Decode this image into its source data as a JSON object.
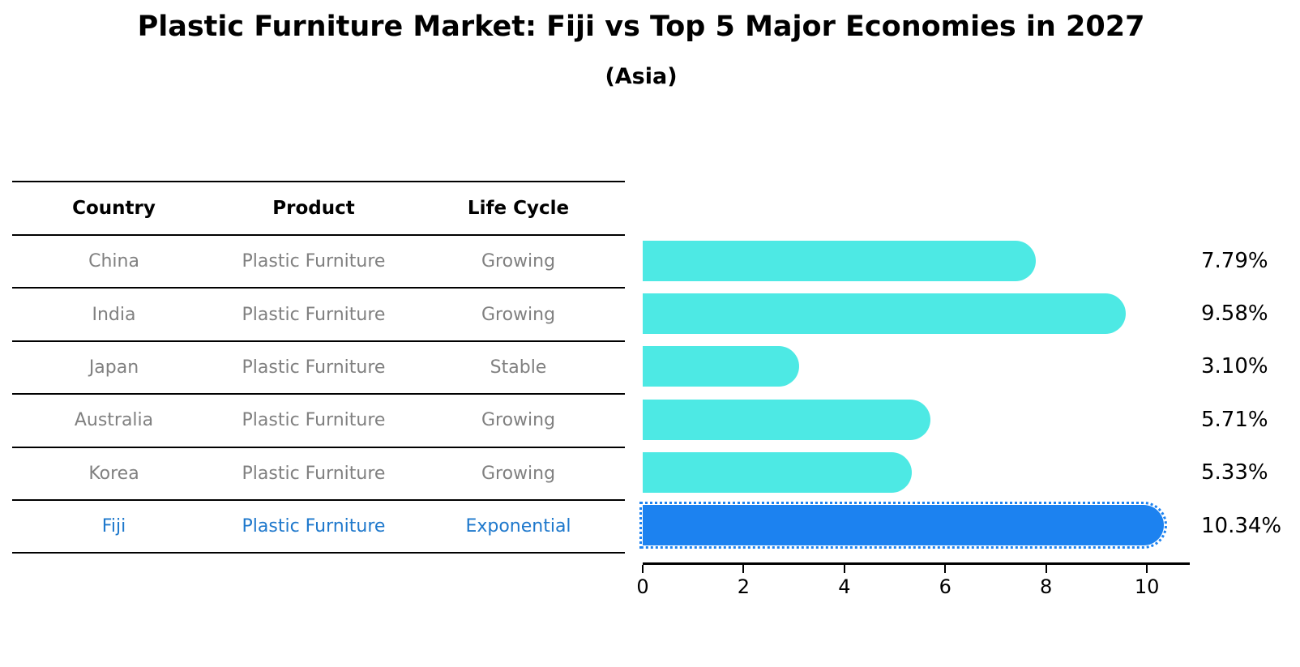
{
  "title": "Plastic Furniture Market: Fiji vs Top 5 Major Economies in 2027",
  "subtitle": "(Asia)",
  "table": {
    "headers": [
      "Country",
      "Product",
      "Life Cycle"
    ],
    "rows": [
      {
        "country": "China",
        "product": "Plastic Furniture",
        "life_cycle": "Growing",
        "highlight": false
      },
      {
        "country": "India",
        "product": "Plastic Furniture",
        "life_cycle": "Growing",
        "highlight": false
      },
      {
        "country": "Japan",
        "product": "Plastic Furniture",
        "life_cycle": "Stable",
        "highlight": false
      },
      {
        "country": "Australia",
        "product": "Plastic Furniture",
        "life_cycle": "Growing",
        "highlight": false
      },
      {
        "country": "Korea",
        "product": "Plastic Furniture",
        "life_cycle": "Growing",
        "highlight": false
      },
      {
        "country": "Fiji",
        "product": "Plastic Furniture",
        "life_cycle": "Exponential",
        "highlight": true
      }
    ]
  },
  "chart_data": {
    "type": "bar",
    "orientation": "horizontal",
    "title": "Plastic Furniture Market: Fiji vs Top 5 Major Economies in 2027",
    "subtitle": "(Asia)",
    "categories": [
      "China",
      "India",
      "Japan",
      "Australia",
      "Korea",
      "Fiji"
    ],
    "values": [
      7.79,
      9.58,
      3.1,
      5.71,
      5.33,
      10.34
    ],
    "value_labels": [
      "7.79%",
      "9.58%",
      "3.10%",
      "5.71%",
      "5.33%",
      "10.34%"
    ],
    "x_ticks": [
      0,
      2,
      4,
      6,
      8,
      10
    ],
    "xlim": [
      0,
      10.85
    ],
    "grid": false,
    "legend": false,
    "bar_color": "#4DE9E4",
    "highlight_color": "#1C82F0",
    "highlight_index": 5,
    "highlight_text_color": "#1E78CC",
    "row_text_color": "#808080"
  }
}
